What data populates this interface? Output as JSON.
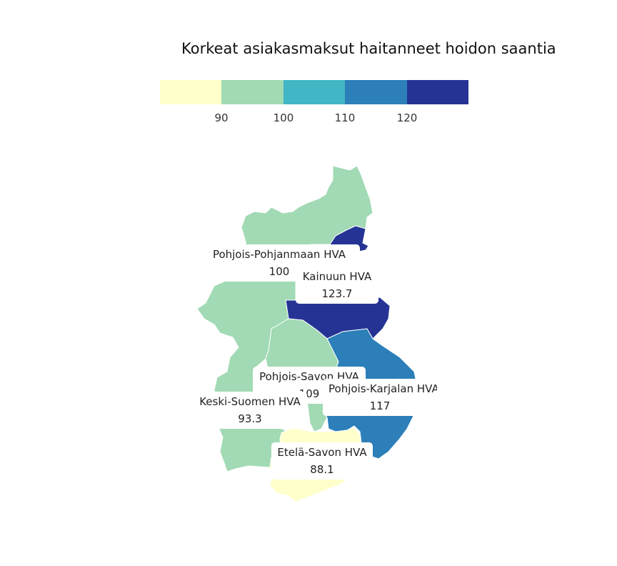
{
  "title": "Korkeat asiakasmaksut haitanneet hoidon saantia",
  "legend": {
    "colors": [
      "#ffffcc",
      "#a1dab4",
      "#41b6c4",
      "#2c7fb8",
      "#253494"
    ],
    "ticks": [
      "90",
      "100",
      "110",
      "120"
    ]
  },
  "regions": [
    {
      "id": "pohjois-pohjanmaa",
      "name": "Pohjois-Pohjanmaan HVA",
      "value": "100",
      "color": "#a1dab4"
    },
    {
      "id": "kainuu",
      "name": "Kainuun HVA",
      "value": "123.7",
      "color": "#253494"
    },
    {
      "id": "pohjois-savo",
      "name": "Pohjois-Savon HVA",
      "value": "109",
      "color": "#a1dab4"
    },
    {
      "id": "pohjois-karjala",
      "name": "Pohjois-Karjalan HVA",
      "value": "117",
      "color": "#2c7fb8"
    },
    {
      "id": "keski-suomi",
      "name": "Keski-Suomen HVA",
      "value": "93.3",
      "color": "#a1dab4"
    },
    {
      "id": "etela-savo",
      "name": "Etelä-Savon HVA",
      "value": "88.1",
      "color": "#ffffcc"
    }
  ]
}
